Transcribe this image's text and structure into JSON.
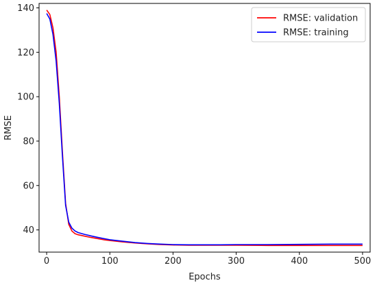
{
  "chart_data": {
    "type": "line",
    "title": "",
    "xlabel": "Epochs",
    "ylabel": "RMSE",
    "xlim": [
      -12,
      512
    ],
    "ylim": [
      30,
      142
    ],
    "xticks": [
      0,
      100,
      200,
      300,
      400,
      500
    ],
    "yticks": [
      40,
      60,
      80,
      100,
      120,
      140
    ],
    "grid": false,
    "legend_position": "top-right",
    "series": [
      {
        "name": "RMSE: validation",
        "color": "#ff0000",
        "x": [
          0,
          5,
          10,
          15,
          20,
          25,
          30,
          35,
          40,
          45,
          50,
          60,
          70,
          80,
          90,
          100,
          120,
          140,
          160,
          180,
          200,
          225,
          250,
          275,
          300,
          350,
          400,
          450,
          500
        ],
        "y": [
          139,
          137,
          131,
          120,
          100,
          75,
          52,
          42.5,
          39.5,
          38.3,
          37.8,
          37.2,
          36.6,
          36.1,
          35.6,
          35.2,
          34.6,
          34.1,
          33.7,
          33.4,
          33.2,
          33.1,
          33.1,
          33.1,
          33.1,
          33.0,
          33.0,
          33.0,
          33.0
        ]
      },
      {
        "name": "RMSE: training",
        "color": "#0000ff",
        "x": [
          0,
          5,
          10,
          15,
          20,
          25,
          30,
          35,
          40,
          45,
          50,
          60,
          70,
          80,
          90,
          100,
          120,
          140,
          160,
          180,
          200,
          225,
          250,
          275,
          300,
          350,
          400,
          450,
          500
        ],
        "y": [
          137.5,
          135,
          128,
          116,
          97,
          73,
          51,
          43.5,
          40.8,
          39.5,
          38.8,
          38.0,
          37.3,
          36.7,
          36.1,
          35.6,
          34.9,
          34.3,
          33.9,
          33.6,
          33.4,
          33.3,
          33.3,
          33.3,
          33.4,
          33.4,
          33.5,
          33.6,
          33.6
        ]
      }
    ]
  }
}
